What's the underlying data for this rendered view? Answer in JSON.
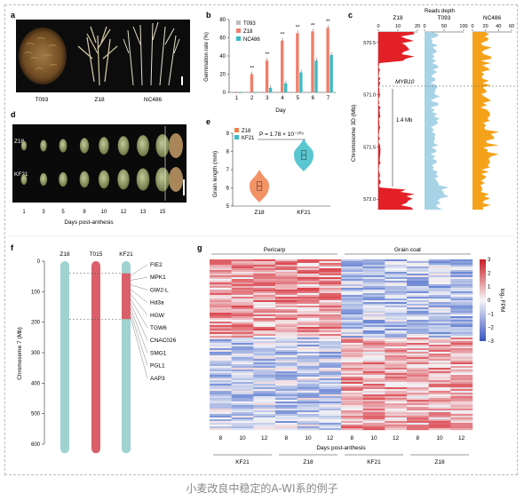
{
  "caption": "小麦改良中稳定的A-WI系的例子",
  "panel_letters": [
    "a",
    "b",
    "c",
    "d",
    "e",
    "f",
    "g"
  ],
  "panel_a": {
    "labels": [
      "T093",
      "Z18",
      "NC486"
    ]
  },
  "panel_d": {
    "row_labels": [
      "Z18",
      "KF21"
    ],
    "xticks": [
      "1",
      "3",
      "5",
      "8",
      "10",
      "12",
      "13",
      "15"
    ],
    "xlabel": "Days post-anthesis"
  },
  "chart_b": {
    "type": "bar",
    "ylabel": "Germination rate (%)",
    "xlabel": "Day",
    "categories": [
      "1",
      "2",
      "3",
      "4",
      "5",
      "6",
      "7"
    ],
    "ylim": [
      0,
      80
    ],
    "yticks": [
      "0",
      "20",
      "40",
      "60",
      "80"
    ],
    "legend": [
      "T093",
      "Z18",
      "NC486"
    ],
    "colors": [
      "#bdbdbd",
      "#f07f6a",
      "#3cbcc0"
    ],
    "series": [
      {
        "name": "T093",
        "values": [
          0,
          0,
          0,
          0,
          0,
          0,
          0
        ]
      },
      {
        "name": "Z18",
        "values": [
          0,
          20,
          35,
          57,
          65,
          67,
          71
        ]
      },
      {
        "name": "NC486",
        "values": [
          0,
          0,
          5,
          10,
          22,
          35,
          41
        ]
      }
    ],
    "sig": [
      "",
      "**",
      "**",
      "**",
      "**",
      "**",
      "**"
    ]
  },
  "chart_c": {
    "title": "Reads depth",
    "ylabel": "Chromosome 3D (Mb)",
    "ymin": 570.4,
    "ymax": 572.1,
    "yticks": [
      "570.5",
      "571.0",
      "571.5",
      "572.0"
    ],
    "tracks": [
      {
        "name": "Z18",
        "xticks": [
          "0",
          "10",
          "20"
        ],
        "max": 20,
        "color": "#e22026"
      },
      {
        "name": "T093",
        "xticks": [
          "0",
          "50",
          "100"
        ],
        "max": 120,
        "color": "#a7d3e6"
      },
      {
        "name": "NC486",
        "xticks": [
          "0",
          "20",
          "40",
          "60"
        ],
        "max": 60,
        "color": "#f5a21b"
      }
    ],
    "marker_label": "MYB10",
    "span_label": "1.4 Mb"
  },
  "chart_e": {
    "type": "violin",
    "ylabel": "Grain length (mm)",
    "categories": [
      "Z18",
      "KF21"
    ],
    "ylim": [
      5,
      9
    ],
    "yticks": [
      "5",
      "6",
      "7",
      "8",
      "9"
    ],
    "legend": [
      "Z18",
      "KF21"
    ],
    "colors": [
      "#f07f4a",
      "#3cbcc8"
    ],
    "medians": [
      6.1,
      7.8
    ],
    "pvalue": "P = 1.78 × 10⁻¹⁰⁹"
  },
  "chart_f": {
    "ylabel": "Chromosome 7 (Mb)",
    "columns": [
      "Z18",
      "T015",
      "KF21"
    ],
    "ylim": [
      0,
      600
    ],
    "yticks": [
      "0",
      "100",
      "200",
      "300",
      "400",
      "500",
      "600"
    ],
    "chrom_colors": [
      "#9fd3d1",
      "#d9606a",
      "#9fd3d1"
    ],
    "introgression": [
      40,
      190
    ],
    "genes": [
      "FIE2",
      "MPK1",
      "GW2-L",
      "Hd3a",
      "HGW",
      "TGW6",
      "CNAC026",
      "SMG1",
      "PGL1",
      "AAP3"
    ]
  },
  "chart_g": {
    "type": "heatmap",
    "group_labels": [
      "Pericarp",
      "Grain coat"
    ],
    "xticks": [
      "8",
      "10",
      "12",
      "8",
      "10",
      "12",
      "8",
      "10",
      "12",
      "8",
      "10",
      "12"
    ],
    "xlabel": "Days post-anthesis",
    "sublabels": [
      "KF21",
      "Z18",
      "KF21",
      "Z18"
    ],
    "colorbar_label": "log₂ FPM",
    "colorbar_ticks": [
      "3",
      "2",
      "1",
      "0",
      "−1",
      "−2",
      "−3"
    ],
    "colors": {
      "low": "#3e62c8",
      "mid": "#f4f4f7",
      "high": "#d6202a"
    }
  }
}
